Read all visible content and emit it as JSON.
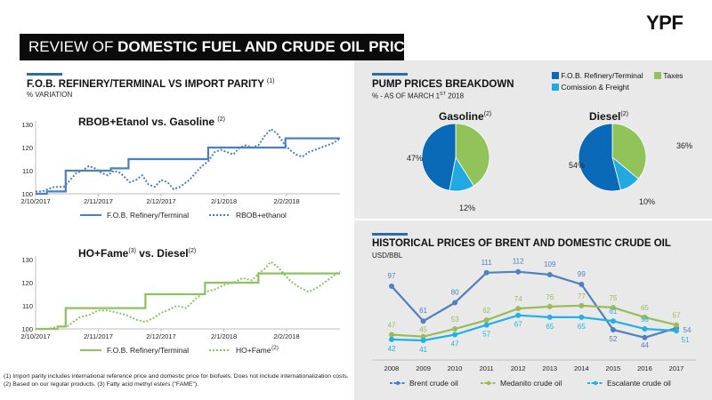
{
  "logo": "YPF",
  "title": {
    "prefix": "REVIEW OF ",
    "bold": "DOMESTIC FUEL AND CRUDE OIL PRICES"
  },
  "left_section": {
    "title": "F.O.B. REFINERY/TERMINAL VS IMPORT PARITY",
    "title_sup": "(1)",
    "subtitle": "% VARIATION"
  },
  "pump_section": {
    "title": "PUMP PRICES BREAKDOWN",
    "subtitle_prefix": "% - AS OF MARCH 1",
    "subtitle_sup": "ST",
    "subtitle_suffix": " 2018",
    "legend": [
      {
        "label": "F.O.B. Refinery/Terminal",
        "color": "#0b6ab7"
      },
      {
        "label": "Taxes",
        "color": "#92c35a"
      },
      {
        "label": "Comission & Freight",
        "color": "#21a9e1"
      }
    ]
  },
  "historical_section": {
    "title": "HISTORICAL PRICES OF BRENT AND DOMESTIC CRUDE OIL",
    "subtitle": "USD/BBL"
  },
  "footnote": "(1) Import parity includes international reference price and domestic price for biofuels. Does not include internationalization costs. (2) Based on our regular products. (3) Fatty acid methyl esters (\"FAME\").",
  "chart_data": [
    {
      "id": "rbob",
      "type": "line",
      "title": "RBOB+Etanol vs. Gasoline",
      "title_sup": "(2)",
      "ylim": [
        100,
        130
      ],
      "yticks": [
        "100",
        "110",
        "120",
        "130"
      ],
      "xticks": [
        "2/10/2017",
        "2/11/2017",
        "2/12/2017",
        "2/1/2018",
        "2/2/2018"
      ],
      "legend": [
        "F.O.B. Refinery/Terminal",
        "RBOB+ethanol"
      ],
      "series": [
        {
          "name": "F.O.B. Refinery/Terminal",
          "color": "#4a7fc1",
          "dashed": false,
          "x": [
            0,
            0.18,
            0.18,
            0.48,
            0.48,
            0.72,
            0.72,
            0.97,
            0.97,
            1.2,
            1.2,
            1.48,
            1.48,
            2.0,
            2.0,
            2.75,
            2.75,
            3.55,
            3.55,
            3.98,
            3.98,
            4.85
          ],
          "y": [
            100,
            100,
            101,
            101,
            110,
            110,
            110,
            110,
            110,
            110,
            111,
            111,
            115,
            115,
            115,
            115,
            120,
            120,
            120,
            120,
            124,
            124
          ]
        },
        {
          "name": "RBOB+ethanol",
          "color": "#4a7fc1",
          "dashed": true,
          "x": [
            0,
            0.1,
            0.2,
            0.3,
            0.45,
            0.55,
            0.65,
            0.75,
            0.85,
            0.95,
            1.05,
            1.15,
            1.25,
            1.35,
            1.5,
            1.6,
            1.7,
            1.8,
            1.9,
            2.0,
            2.1,
            2.2,
            2.3,
            2.45,
            2.55,
            2.65,
            2.75,
            2.85,
            2.95,
            3.05,
            3.15,
            3.25,
            3.35,
            3.45,
            3.55,
            3.65,
            3.75,
            3.85,
            3.95,
            4.05,
            4.15,
            4.25,
            4.35,
            4.45,
            4.55,
            4.65,
            4.75,
            4.85
          ],
          "y": [
            101,
            101,
            102,
            103,
            103,
            106,
            109,
            110,
            112,
            111,
            109,
            108,
            110,
            109,
            105,
            106,
            108,
            104,
            103,
            106,
            105,
            102,
            103,
            106,
            109,
            112,
            114,
            118,
            119,
            118,
            117,
            120,
            121,
            120,
            121,
            125,
            128,
            126,
            122,
            119,
            117,
            116,
            118,
            119,
            120,
            121,
            122,
            124
          ]
        }
      ]
    },
    {
      "id": "hofame",
      "type": "line",
      "title": "HO+Fame",
      "title_sup": "(3)",
      "title_suffix": " vs. Diesel",
      "title_suffix_sup": "(2)",
      "ylim": [
        100,
        130
      ],
      "yticks": [
        "100",
        "110",
        "120",
        "130"
      ],
      "xticks": [
        "2/10/2017",
        "2/11/2017",
        "2/12/2017",
        "2/1/2018",
        "2/2/2018"
      ],
      "legend": [
        "F.O.B. Refinery/Terminal",
        "HO+Fame"
      ],
      "legend_sup": "(2)",
      "series": [
        {
          "name": "F.O.B. Refinery/Terminal",
          "color": "#8dc260",
          "dashed": false,
          "x": [
            0,
            0.35,
            0.35,
            0.48,
            0.48,
            1.75,
            1.75,
            2.0,
            2.0,
            2.7,
            2.7,
            3.55,
            3.55,
            4.85
          ],
          "y": [
            100,
            100,
            101,
            101,
            109,
            109,
            115,
            115,
            115,
            115,
            120,
            120,
            124,
            124
          ]
        },
        {
          "name": "HO+Fame",
          "color": "#8dc260",
          "dashed": true,
          "x": [
            0,
            0.2,
            0.35,
            0.5,
            0.6,
            0.7,
            0.85,
            1.0,
            1.15,
            1.3,
            1.45,
            1.6,
            1.75,
            1.9,
            2.0,
            2.1,
            2.25,
            2.4,
            2.55,
            2.7,
            2.85,
            3.0,
            3.15,
            3.3,
            3.45,
            3.55,
            3.65,
            3.75,
            3.85,
            3.95,
            4.05,
            4.2,
            4.35,
            4.5,
            4.65,
            4.85
          ],
          "y": [
            100,
            100,
            101,
            101,
            103,
            105,
            106,
            108,
            108,
            107,
            106,
            104,
            103,
            105,
            107,
            108,
            110,
            109,
            113,
            116,
            117,
            119,
            120,
            122,
            121,
            124,
            126,
            129,
            127,
            124,
            121,
            118,
            116,
            118,
            121,
            125
          ]
        }
      ]
    },
    {
      "id": "gasoline_pie",
      "type": "pie",
      "title": "Gasoline",
      "title_sup": "(2)",
      "slices": [
        {
          "name": "Taxes",
          "value": 41,
          "label": "41%",
          "color": "#92c35a"
        },
        {
          "name": "Comission & Freight",
          "value": 12,
          "label": "12%",
          "color": "#21a9e1"
        },
        {
          "name": "F.O.B. Refinery/Terminal",
          "value": 47,
          "label": "47%",
          "color": "#0b6ab7"
        }
      ]
    },
    {
      "id": "diesel_pie",
      "type": "pie",
      "title": "Diesel",
      "title_sup": "(2)",
      "slices": [
        {
          "name": "Taxes",
          "value": 36,
          "label": "36%",
          "color": "#92c35a"
        },
        {
          "name": "Comission & Freight",
          "value": 10,
          "label": "10%",
          "color": "#21a9e1"
        },
        {
          "name": "F.O.B. Refinery/Terminal",
          "value": 54,
          "label": "54%",
          "color": "#0b6ab7"
        }
      ]
    },
    {
      "id": "historical",
      "type": "line",
      "categories": [
        "2008",
        "2009",
        "2010",
        "2011",
        "2012",
        "2013",
        "2014",
        "2015",
        "2016",
        "2017"
      ],
      "ylim": [
        30,
        120
      ],
      "series": [
        {
          "name": "Brent crude oil",
          "color": "#4f81bd",
          "values": [
            97,
            61,
            80,
            111,
            112,
            109,
            99,
            52,
            44,
            54
          ]
        },
        {
          "name": "Medanito crude oil",
          "color": "#9bbb59",
          "values": [
            47,
            45,
            53,
            62,
            74,
            76,
            77,
            75,
            65,
            57
          ]
        },
        {
          "name": "Escalante crude oil",
          "color": "#21b1e6",
          "values": [
            42,
            41,
            47,
            57,
            67,
            65,
            65,
            61,
            53,
            51
          ]
        }
      ]
    }
  ]
}
